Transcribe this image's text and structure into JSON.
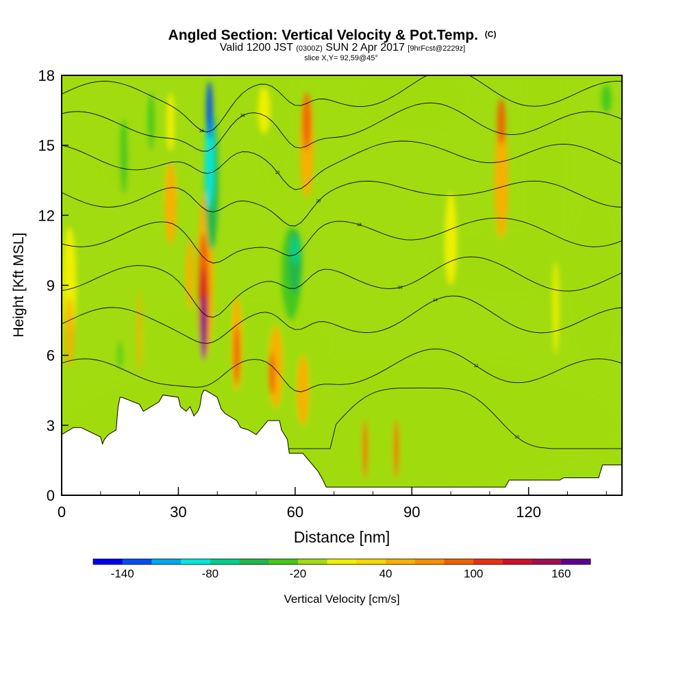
{
  "header": {
    "title_main": "Angled Section: Vertical Velocity & Pot.Temp.",
    "title_unit": "(C)",
    "valid_main": "Valid 1200 JST",
    "valid_utc": "(0300Z)",
    "valid_date": "SUN 2 Apr 2017",
    "valid_fcst": "[9hrFcst@2229z]",
    "slice": "slice X,Y= 92,59@45°"
  },
  "chart_data": {
    "type": "heatmap",
    "title": "Angled Section: Vertical Velocity & Pot.Temp. (C)",
    "xlabel": "Distance [nm]",
    "ylabel": "Height [Kft MSL]",
    "xlim": [
      0,
      144
    ],
    "ylim": [
      0,
      18
    ],
    "x_ticks": [
      "0",
      "30",
      "60",
      "90",
      "120"
    ],
    "x_tick_values": [
      0,
      30,
      60,
      90,
      120
    ],
    "x_minor_step": 10,
    "y_ticks": [
      "0",
      "3",
      "6",
      "9",
      "12",
      "15",
      "18"
    ],
    "y_tick_values": [
      0,
      3,
      6,
      9,
      12,
      15,
      18
    ],
    "colorbar": {
      "label": "Vertical Velocity [cm/s]",
      "levels": [
        -160,
        -140,
        -120,
        -100,
        -80,
        -60,
        -40,
        -20,
        0,
        20,
        40,
        60,
        80,
        100,
        120,
        140,
        160,
        180
      ],
      "tick_labels": [
        "-140",
        "-80",
        "-20",
        "40",
        "100",
        "160"
      ],
      "tick_values": [
        -140,
        -80,
        -20,
        40,
        100,
        160
      ],
      "colors": [
        "#0000f0",
        "#0050f0",
        "#00a8f0",
        "#00e8e0",
        "#00d08a",
        "#22b84a",
        "#44c81a",
        "#a0dc10",
        "#f0f000",
        "#f8d800",
        "#f8b000",
        "#f89000",
        "#f06000",
        "#e83010",
        "#d01028",
        "#a01050",
        "#600090"
      ]
    },
    "terrain_profile": {
      "x": [
        0,
        3,
        5,
        10,
        10.5,
        11,
        12,
        14,
        14.5,
        15,
        15.5,
        20,
        21,
        25,
        26,
        30,
        30.5,
        32,
        33,
        34,
        35,
        35.5,
        36,
        36.5,
        37,
        40,
        41,
        42,
        45,
        46,
        48,
        50,
        51,
        52,
        53,
        56,
        56.5,
        58,
        58.5,
        62,
        63,
        64,
        65,
        66,
        67,
        68,
        70,
        114,
        115,
        128,
        129,
        138,
        139,
        144
      ],
      "y": [
        2.6,
        2.9,
        2.9,
        2.5,
        2.2,
        2.4,
        2.6,
        2.8,
        3.8,
        4.2,
        4.2,
        3.9,
        3.6,
        4.0,
        4.3,
        4.2,
        3.8,
        3.6,
        3.8,
        3.4,
        3.6,
        3.8,
        4.3,
        4.5,
        4.5,
        4.2,
        3.7,
        3.5,
        3.2,
        2.9,
        2.8,
        2.6,
        2.8,
        3.0,
        3.2,
        3.2,
        2.8,
        2.4,
        1.8,
        1.8,
        1.6,
        1.4,
        1.2,
        1.0,
        0.7,
        0.35,
        0.35,
        0.35,
        0.65,
        0.65,
        0.75,
        0.75,
        1.3,
        1.3
      ]
    },
    "vertical_velocity_features": [
      {
        "x": 38,
        "y": 16.5,
        "w": 1.6,
        "h": 2.5,
        "value": -140
      },
      {
        "x": 38,
        "y": 14.5,
        "w": 2.2,
        "h": 4.5,
        "value": -100
      },
      {
        "x": 38.5,
        "y": 13.5,
        "w": 3.5,
        "h": 6.0,
        "value": -60
      },
      {
        "x": 60,
        "y": 10.5,
        "w": 2.0,
        "h": 1.2,
        "value": -80
      },
      {
        "x": 60,
        "y": 10.0,
        "w": 3.5,
        "h": 2.8,
        "value": -60
      },
      {
        "x": 59,
        "y": 9.5,
        "w": 5.0,
        "h": 4.0,
        "value": -40
      },
      {
        "x": 16,
        "y": 14.5,
        "w": 2.0,
        "h": 3.2,
        "value": -40
      },
      {
        "x": 23,
        "y": 16.0,
        "w": 1.6,
        "h": 2.5,
        "value": -40
      },
      {
        "x": 140,
        "y": 17.0,
        "w": 2.5,
        "h": 1.2,
        "value": -40
      },
      {
        "x": 15,
        "y": 6.0,
        "w": 1.0,
        "h": 1.2,
        "value": -40
      },
      {
        "x": 36.5,
        "y": 7.2,
        "w": 1.2,
        "h": 2.8,
        "value": 160
      },
      {
        "x": 36.5,
        "y": 7.8,
        "w": 1.8,
        "h": 4.0,
        "value": 120
      },
      {
        "x": 36.5,
        "y": 8.5,
        "w": 2.8,
        "h": 5.5,
        "value": 80
      },
      {
        "x": 37,
        "y": 9.5,
        "w": 4.0,
        "h": 7.0,
        "value": 40
      },
      {
        "x": 45,
        "y": 6.0,
        "w": 1.6,
        "h": 2.5,
        "value": 80
      },
      {
        "x": 45,
        "y": 6.5,
        "w": 2.6,
        "h": 4.0,
        "value": 40
      },
      {
        "x": 54,
        "y": 5.2,
        "w": 1.6,
        "h": 1.8,
        "value": 80
      },
      {
        "x": 55,
        "y": 5.5,
        "w": 3.5,
        "h": 3.5,
        "value": 40
      },
      {
        "x": 62,
        "y": 4.5,
        "w": 3.0,
        "h": 3.0,
        "value": 40
      },
      {
        "x": 63,
        "y": 16.0,
        "w": 2.0,
        "h": 2.5,
        "value": 80
      },
      {
        "x": 63,
        "y": 15.0,
        "w": 3.5,
        "h": 4.5,
        "value": 40
      },
      {
        "x": 2,
        "y": 7.0,
        "w": 2.0,
        "h": 3.0,
        "value": 40
      },
      {
        "x": 2,
        "y": 9.0,
        "w": 3.5,
        "h": 5.0,
        "value": 0
      },
      {
        "x": 113,
        "y": 13.5,
        "w": 3.5,
        "h": 5.0,
        "value": 40
      },
      {
        "x": 113,
        "y": 16.0,
        "w": 2.0,
        "h": 2.0,
        "value": 80
      },
      {
        "x": 100,
        "y": 11.0,
        "w": 3.0,
        "h": 4.0,
        "value": 0
      },
      {
        "x": 78,
        "y": 2.0,
        "w": 1.2,
        "h": 2.5,
        "value": 80
      },
      {
        "x": 86,
        "y": 2.0,
        "w": 1.2,
        "h": 2.5,
        "value": 80
      },
      {
        "x": 28,
        "y": 12.5,
        "w": 3.0,
        "h": 3.5,
        "value": 40
      },
      {
        "x": 20,
        "y": 7.0,
        "w": 1.0,
        "h": 3.5,
        "value": 40
      },
      {
        "x": 33,
        "y": 9.5,
        "w": 2.0,
        "h": 3.0,
        "value": 40
      },
      {
        "x": 28,
        "y": 16.0,
        "w": 2.0,
        "h": 2.5,
        "value": 0
      },
      {
        "x": 52,
        "y": 16.5,
        "w": 3.0,
        "h": 2.0,
        "value": 0
      },
      {
        "x": 127,
        "y": 8.0,
        "w": 1.5,
        "h": 4.0,
        "value": 0
      }
    ],
    "potential_temperature_contours": {
      "level_labels": [
        "26",
        "24",
        "22",
        "20",
        "18",
        "16",
        "14",
        "12",
        "10"
      ],
      "levels": [
        26,
        24,
        22,
        20,
        18,
        16,
        14,
        12,
        10
      ],
      "base_heights": [
        17.2,
        15.9,
        14.5,
        12.9,
        11.2,
        9.3,
        7.5,
        5.3,
        2.0
      ]
    }
  }
}
